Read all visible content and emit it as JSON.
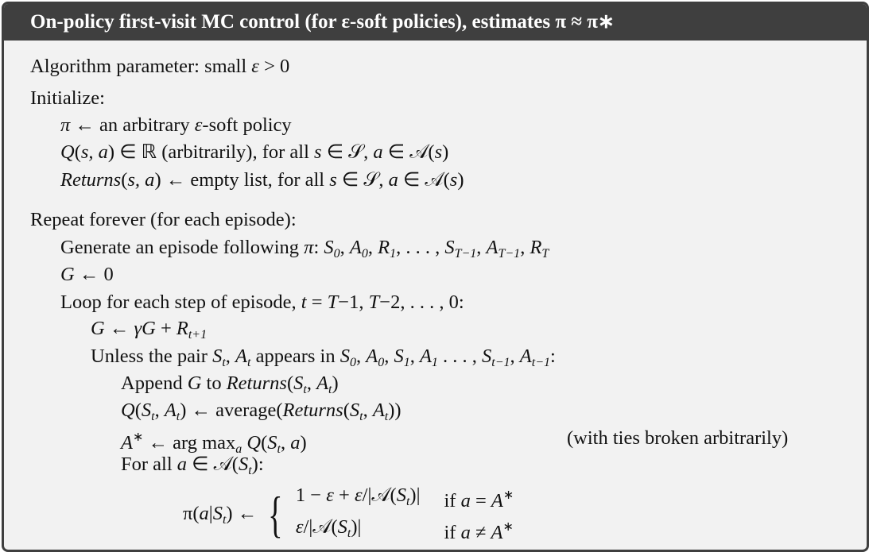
{
  "header": {
    "title": "On-policy first-visit MC control (for ε-soft policies), estimates π ≈ π∗"
  },
  "lines": [
    {
      "indent": 0,
      "segs": [
        [
          "Algorithm parameter: small ",
          "r"
        ],
        [
          "ε",
          "i"
        ],
        [
          " > 0",
          "r"
        ]
      ]
    },
    {
      "indent": 0,
      "segs": [
        [
          "Initialize:",
          "r"
        ]
      ]
    },
    {
      "indent": 1,
      "segs": [
        [
          "π",
          "i"
        ],
        [
          " ← an arbitrary ",
          "r"
        ],
        [
          "ε",
          "i"
        ],
        [
          "-soft policy",
          "r"
        ]
      ]
    },
    {
      "indent": 1,
      "segs": [
        [
          "Q",
          "i"
        ],
        [
          "(",
          "r"
        ],
        [
          "s, a",
          "i"
        ],
        [
          ") ∈ ℝ (arbitrarily), for all ",
          "r"
        ],
        [
          "s",
          "i"
        ],
        [
          " ∈ 𝒮, ",
          "r"
        ],
        [
          "a",
          "i"
        ],
        [
          " ∈ 𝒜(",
          "r"
        ],
        [
          "s",
          "i"
        ],
        [
          ")",
          "r"
        ]
      ]
    },
    {
      "indent": 1,
      "segs": [
        [
          "Returns",
          "i"
        ],
        [
          "(",
          "r"
        ],
        [
          "s, a",
          "i"
        ],
        [
          ") ← empty list, for all ",
          "r"
        ],
        [
          "s",
          "i"
        ],
        [
          " ∈ 𝒮, ",
          "r"
        ],
        [
          "a",
          "i"
        ],
        [
          " ∈ 𝒜(",
          "r"
        ],
        [
          "s",
          "i"
        ],
        [
          ")",
          "r"
        ]
      ]
    },
    {
      "indent": 0,
      "segs": [
        [
          "Repeat forever (for each episode):",
          "r"
        ]
      ]
    },
    {
      "indent": 1,
      "segs": [
        [
          "Generate an episode following ",
          "r"
        ],
        [
          "π",
          "i"
        ],
        [
          ": ",
          "r"
        ],
        [
          "S",
          "i"
        ],
        [
          "0",
          "b"
        ],
        [
          ", ",
          "r"
        ],
        [
          "A",
          "i"
        ],
        [
          "0",
          "b"
        ],
        [
          ", ",
          "r"
        ],
        [
          "R",
          "i"
        ],
        [
          "1",
          "b"
        ],
        [
          ", . . . , ",
          "r"
        ],
        [
          "S",
          "i"
        ],
        [
          "T−1",
          "b"
        ],
        [
          ", ",
          "r"
        ],
        [
          "A",
          "i"
        ],
        [
          "T−1",
          "b"
        ],
        [
          ", ",
          "r"
        ],
        [
          "R",
          "i"
        ],
        [
          "T",
          "b"
        ]
      ]
    },
    {
      "indent": 1,
      "segs": [
        [
          "G",
          "i"
        ],
        [
          " ← 0",
          "r"
        ]
      ]
    },
    {
      "indent": 1,
      "segs": [
        [
          "Loop for each step of episode, ",
          "r"
        ],
        [
          "t",
          "i"
        ],
        [
          " = ",
          "r"
        ],
        [
          "T",
          "i"
        ],
        [
          "−1, ",
          "r"
        ],
        [
          "T",
          "i"
        ],
        [
          "−2, . . . , 0:",
          "r"
        ]
      ]
    },
    {
      "indent": 2,
      "segs": [
        [
          "G",
          "i"
        ],
        [
          " ← ",
          "r"
        ],
        [
          "γG",
          "i"
        ],
        [
          " + ",
          "r"
        ],
        [
          "R",
          "i"
        ],
        [
          "t+1",
          "b"
        ]
      ]
    },
    {
      "indent": 2,
      "segs": [
        [
          "Unless the pair ",
          "r"
        ],
        [
          "S",
          "i"
        ],
        [
          "t",
          "b"
        ],
        [
          ", ",
          "r"
        ],
        [
          "A",
          "i"
        ],
        [
          "t",
          "b"
        ],
        [
          " appears in ",
          "r"
        ],
        [
          "S",
          "i"
        ],
        [
          "0",
          "b"
        ],
        [
          ", ",
          "r"
        ],
        [
          "A",
          "i"
        ],
        [
          "0",
          "b"
        ],
        [
          ", ",
          "r"
        ],
        [
          "S",
          "i"
        ],
        [
          "1",
          "b"
        ],
        [
          ", ",
          "r"
        ],
        [
          "A",
          "i"
        ],
        [
          "1",
          "b"
        ],
        [
          " . . . , ",
          "r"
        ],
        [
          "S",
          "i"
        ],
        [
          "t−1",
          "b"
        ],
        [
          ", ",
          "r"
        ],
        [
          "A",
          "i"
        ],
        [
          "t−1",
          "b"
        ],
        [
          ":",
          "r"
        ]
      ]
    },
    {
      "indent": 3,
      "segs": [
        [
          "Append ",
          "r"
        ],
        [
          "G",
          "i"
        ],
        [
          " to ",
          "r"
        ],
        [
          "Returns",
          "i"
        ],
        [
          "(",
          "r"
        ],
        [
          "S",
          "i"
        ],
        [
          "t",
          "b"
        ],
        [
          ", ",
          "r"
        ],
        [
          "A",
          "i"
        ],
        [
          "t",
          "b"
        ],
        [
          ")",
          "r"
        ]
      ]
    },
    {
      "indent": 3,
      "segs": [
        [
          "Q",
          "i"
        ],
        [
          "(",
          "r"
        ],
        [
          "S",
          "i"
        ],
        [
          "t",
          "b"
        ],
        [
          ", ",
          "r"
        ],
        [
          "A",
          "i"
        ],
        [
          "t",
          "b"
        ],
        [
          ") ← average(",
          "r"
        ],
        [
          "Returns",
          "i"
        ],
        [
          "(",
          "r"
        ],
        [
          "S",
          "i"
        ],
        [
          "t",
          "b"
        ],
        [
          ", ",
          "r"
        ],
        [
          "A",
          "i"
        ],
        [
          "t",
          "b"
        ],
        [
          "))",
          "r"
        ]
      ]
    },
    {
      "indent": 3,
      "segs": [
        [
          "A",
          "i"
        ],
        [
          "∗",
          "p"
        ],
        [
          " ← arg max",
          "r"
        ],
        [
          "a",
          "b"
        ],
        [
          " ",
          "r"
        ],
        [
          "Q",
          "i"
        ],
        [
          "(",
          "r"
        ],
        [
          "S",
          "i"
        ],
        [
          "t",
          "b"
        ],
        [
          ", ",
          "r"
        ],
        [
          "a",
          "i"
        ],
        [
          ")",
          "r"
        ]
      ]
    },
    {
      "indent": 3,
      "segs": [
        [
          "For all ",
          "r"
        ],
        [
          "a",
          "i"
        ],
        [
          " ∈ 𝒜(",
          "r"
        ],
        [
          "S",
          "i"
        ],
        [
          "t",
          "b"
        ],
        [
          "):",
          "r"
        ]
      ]
    }
  ],
  "ties_note": "(with ties broken arbitrarily)",
  "piecewise": {
    "lhs": [
      [
        "π",
        "r"
      ],
      [
        "(",
        "r"
      ],
      [
        "a",
        "i"
      ],
      [
        "|",
        "r"
      ],
      [
        "S",
        "i"
      ],
      [
        "t",
        "b"
      ],
      [
        ") ←",
        "r"
      ]
    ],
    "cases": [
      {
        "value": [
          [
            "1 − ",
            "r"
          ],
          [
            "ε",
            "i"
          ],
          [
            " + ",
            "r"
          ],
          [
            "ε",
            "i"
          ],
          [
            "/|𝒜(",
            "r"
          ],
          [
            "S",
            "i"
          ],
          [
            "t",
            "b"
          ],
          [
            ")|",
            "r"
          ]
        ],
        "cond": [
          [
            "if ",
            "r"
          ],
          [
            "a",
            "i"
          ],
          [
            " = ",
            "r"
          ],
          [
            "A",
            "i"
          ],
          [
            "∗",
            "p"
          ]
        ]
      },
      {
        "value": [
          [
            "ε",
            "i"
          ],
          [
            "/|𝒜(",
            "r"
          ],
          [
            "S",
            "i"
          ],
          [
            "t",
            "b"
          ],
          [
            ")|",
            "r"
          ]
        ],
        "cond": [
          [
            "if ",
            "r"
          ],
          [
            "a",
            "i"
          ],
          [
            " ≠ ",
            "r"
          ],
          [
            "A",
            "i"
          ],
          [
            "∗",
            "p"
          ]
        ]
      }
    ]
  }
}
